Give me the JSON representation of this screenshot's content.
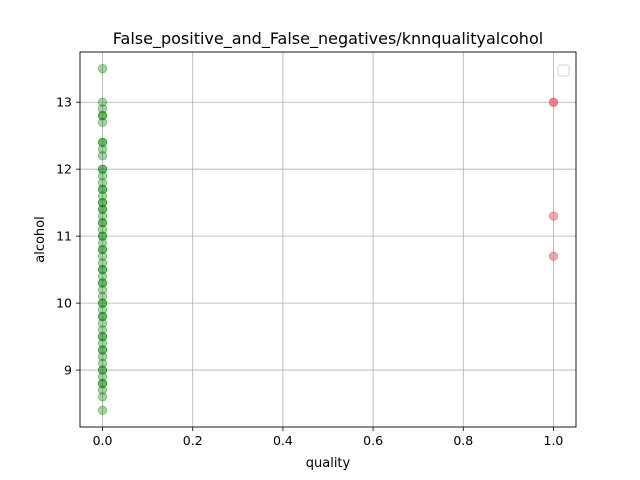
{
  "chart_data": {
    "type": "scatter",
    "title": "False_positive_and_False_negatives/knnqualityalcohol",
    "xlabel": "quality",
    "ylabel": "alcohol",
    "xlim": [
      -0.05,
      1.05
    ],
    "ylim": [
      8.15,
      13.75
    ],
    "xticks": [
      "0.0",
      "0.2",
      "0.4",
      "0.6",
      "0.8",
      "1.0"
    ],
    "yticks": [
      "9",
      "10",
      "11",
      "12",
      "13"
    ],
    "grid": true,
    "legend": {
      "placement": "top-right",
      "entries": []
    },
    "series": [
      {
        "color": "#008000",
        "alpha": 0.35,
        "points": [
          [
            0,
            13.5
          ],
          [
            0,
            13.0
          ],
          [
            0,
            12.9
          ],
          [
            0,
            12.8
          ],
          [
            0,
            12.8
          ],
          [
            0,
            12.7
          ],
          [
            0,
            12.4
          ],
          [
            0,
            12.4
          ],
          [
            0,
            12.3
          ],
          [
            0,
            12.2
          ],
          [
            0,
            12.0
          ],
          [
            0,
            12.0
          ],
          [
            0,
            11.9
          ],
          [
            0,
            11.8
          ],
          [
            0,
            11.7
          ],
          [
            0,
            11.7
          ],
          [
            0,
            11.6
          ],
          [
            0,
            11.5
          ],
          [
            0,
            11.5
          ],
          [
            0,
            11.4
          ],
          [
            0,
            11.4
          ],
          [
            0,
            11.3
          ],
          [
            0,
            11.2
          ],
          [
            0,
            11.2
          ],
          [
            0,
            11.1
          ],
          [
            0,
            11.0
          ],
          [
            0,
            11.0
          ],
          [
            0,
            10.9
          ],
          [
            0,
            10.8
          ],
          [
            0,
            10.8
          ],
          [
            0,
            10.7
          ],
          [
            0,
            10.6
          ],
          [
            0,
            10.5
          ],
          [
            0,
            10.5
          ],
          [
            0,
            10.4
          ],
          [
            0,
            10.3
          ],
          [
            0,
            10.3
          ],
          [
            0,
            10.2
          ],
          [
            0,
            10.1
          ],
          [
            0,
            10.0
          ],
          [
            0,
            10.0
          ],
          [
            0,
            9.9
          ],
          [
            0,
            9.8
          ],
          [
            0,
            9.8
          ],
          [
            0,
            9.7
          ],
          [
            0,
            9.6
          ],
          [
            0,
            9.5
          ],
          [
            0,
            9.5
          ],
          [
            0,
            9.4
          ],
          [
            0,
            9.3
          ],
          [
            0,
            9.3
          ],
          [
            0,
            9.2
          ],
          [
            0,
            9.1
          ],
          [
            0,
            9.0
          ],
          [
            0,
            9.0
          ],
          [
            0,
            8.9
          ],
          [
            0,
            8.8
          ],
          [
            0,
            8.8
          ],
          [
            0,
            8.7
          ],
          [
            0,
            8.6
          ],
          [
            0,
            8.4
          ]
        ]
      },
      {
        "color": "#e8636f",
        "alpha": 0.55,
        "points": [
          [
            1,
            13.0
          ],
          [
            1,
            13.0
          ],
          [
            1,
            11.3
          ],
          [
            1,
            10.7
          ]
        ]
      }
    ]
  }
}
